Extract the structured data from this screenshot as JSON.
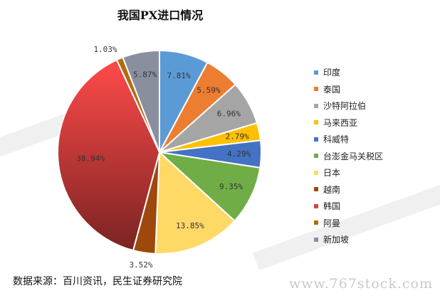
{
  "chart_data": {
    "type": "pie",
    "title": "我国PX进口情况",
    "slices": [
      {
        "name": "印度",
        "value": 7.81,
        "label": "7.81%",
        "color": "#5b9bd5"
      },
      {
        "name": "泰国",
        "value": 5.59,
        "label": "5.59%",
        "color": "#ed7d31"
      },
      {
        "name": "沙特阿拉伯",
        "value": 6.96,
        "label": "6.96%",
        "color": "#a5a5a5"
      },
      {
        "name": "马来西亚",
        "value": 2.79,
        "label": "2.79%",
        "color": "#ffc000"
      },
      {
        "name": "科威特",
        "value": 4.29,
        "label": "4.29%",
        "color": "#4472c4"
      },
      {
        "name": "台澎金马关税区",
        "value": 9.35,
        "label": "9.35%",
        "color": "#70ad47"
      },
      {
        "name": "日本",
        "value": 13.85,
        "label": "13.85%",
        "color": "#ffd966"
      },
      {
        "name": "越南",
        "value": 3.52,
        "label": "3.52%",
        "color": "#9e480e"
      },
      {
        "name": "韩国",
        "value": 38.94,
        "label": "38.94%",
        "color": "#d9453c"
      },
      {
        "name": "阿曼",
        "value": 1.03,
        "label": "1.03%",
        "color": "#b36b10"
      },
      {
        "name": "新加坡",
        "value": 5.87,
        "label": "5.87%",
        "color": "#8a8fa0"
      }
    ],
    "legend_position": "right"
  },
  "source": "数据来源：百川资讯，民生证券研究院",
  "watermark": "www.767stock.com"
}
